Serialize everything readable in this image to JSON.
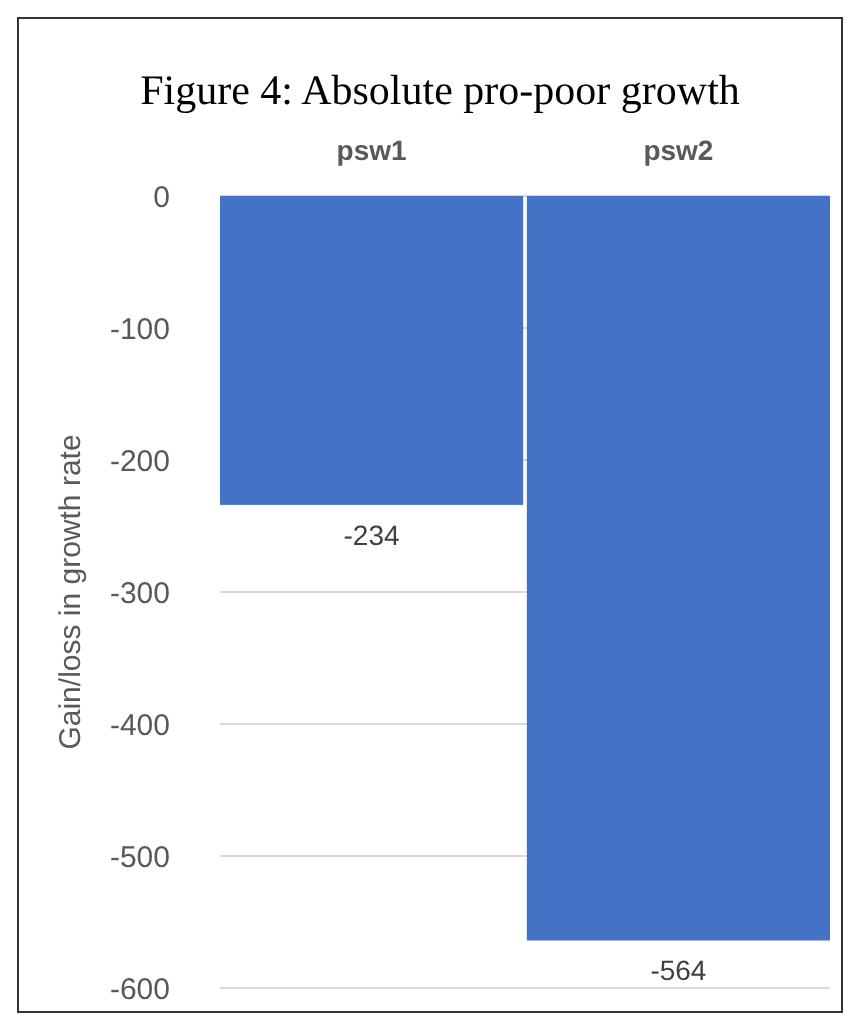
{
  "chart_data": {
    "type": "bar",
    "title": "Figure 4: Absolute pro-poor growth",
    "ylabel": "Gain/loss in growth rate",
    "categories": [
      "psw1",
      "psw2"
    ],
    "values": [
      -234,
      -564
    ],
    "color": "#4472c4",
    "ylim": [
      -600,
      0
    ],
    "yticks": [
      -600,
      -500,
      -400,
      -300,
      -200,
      -100,
      0
    ],
    "grid": "y",
    "data_labels": true
  }
}
